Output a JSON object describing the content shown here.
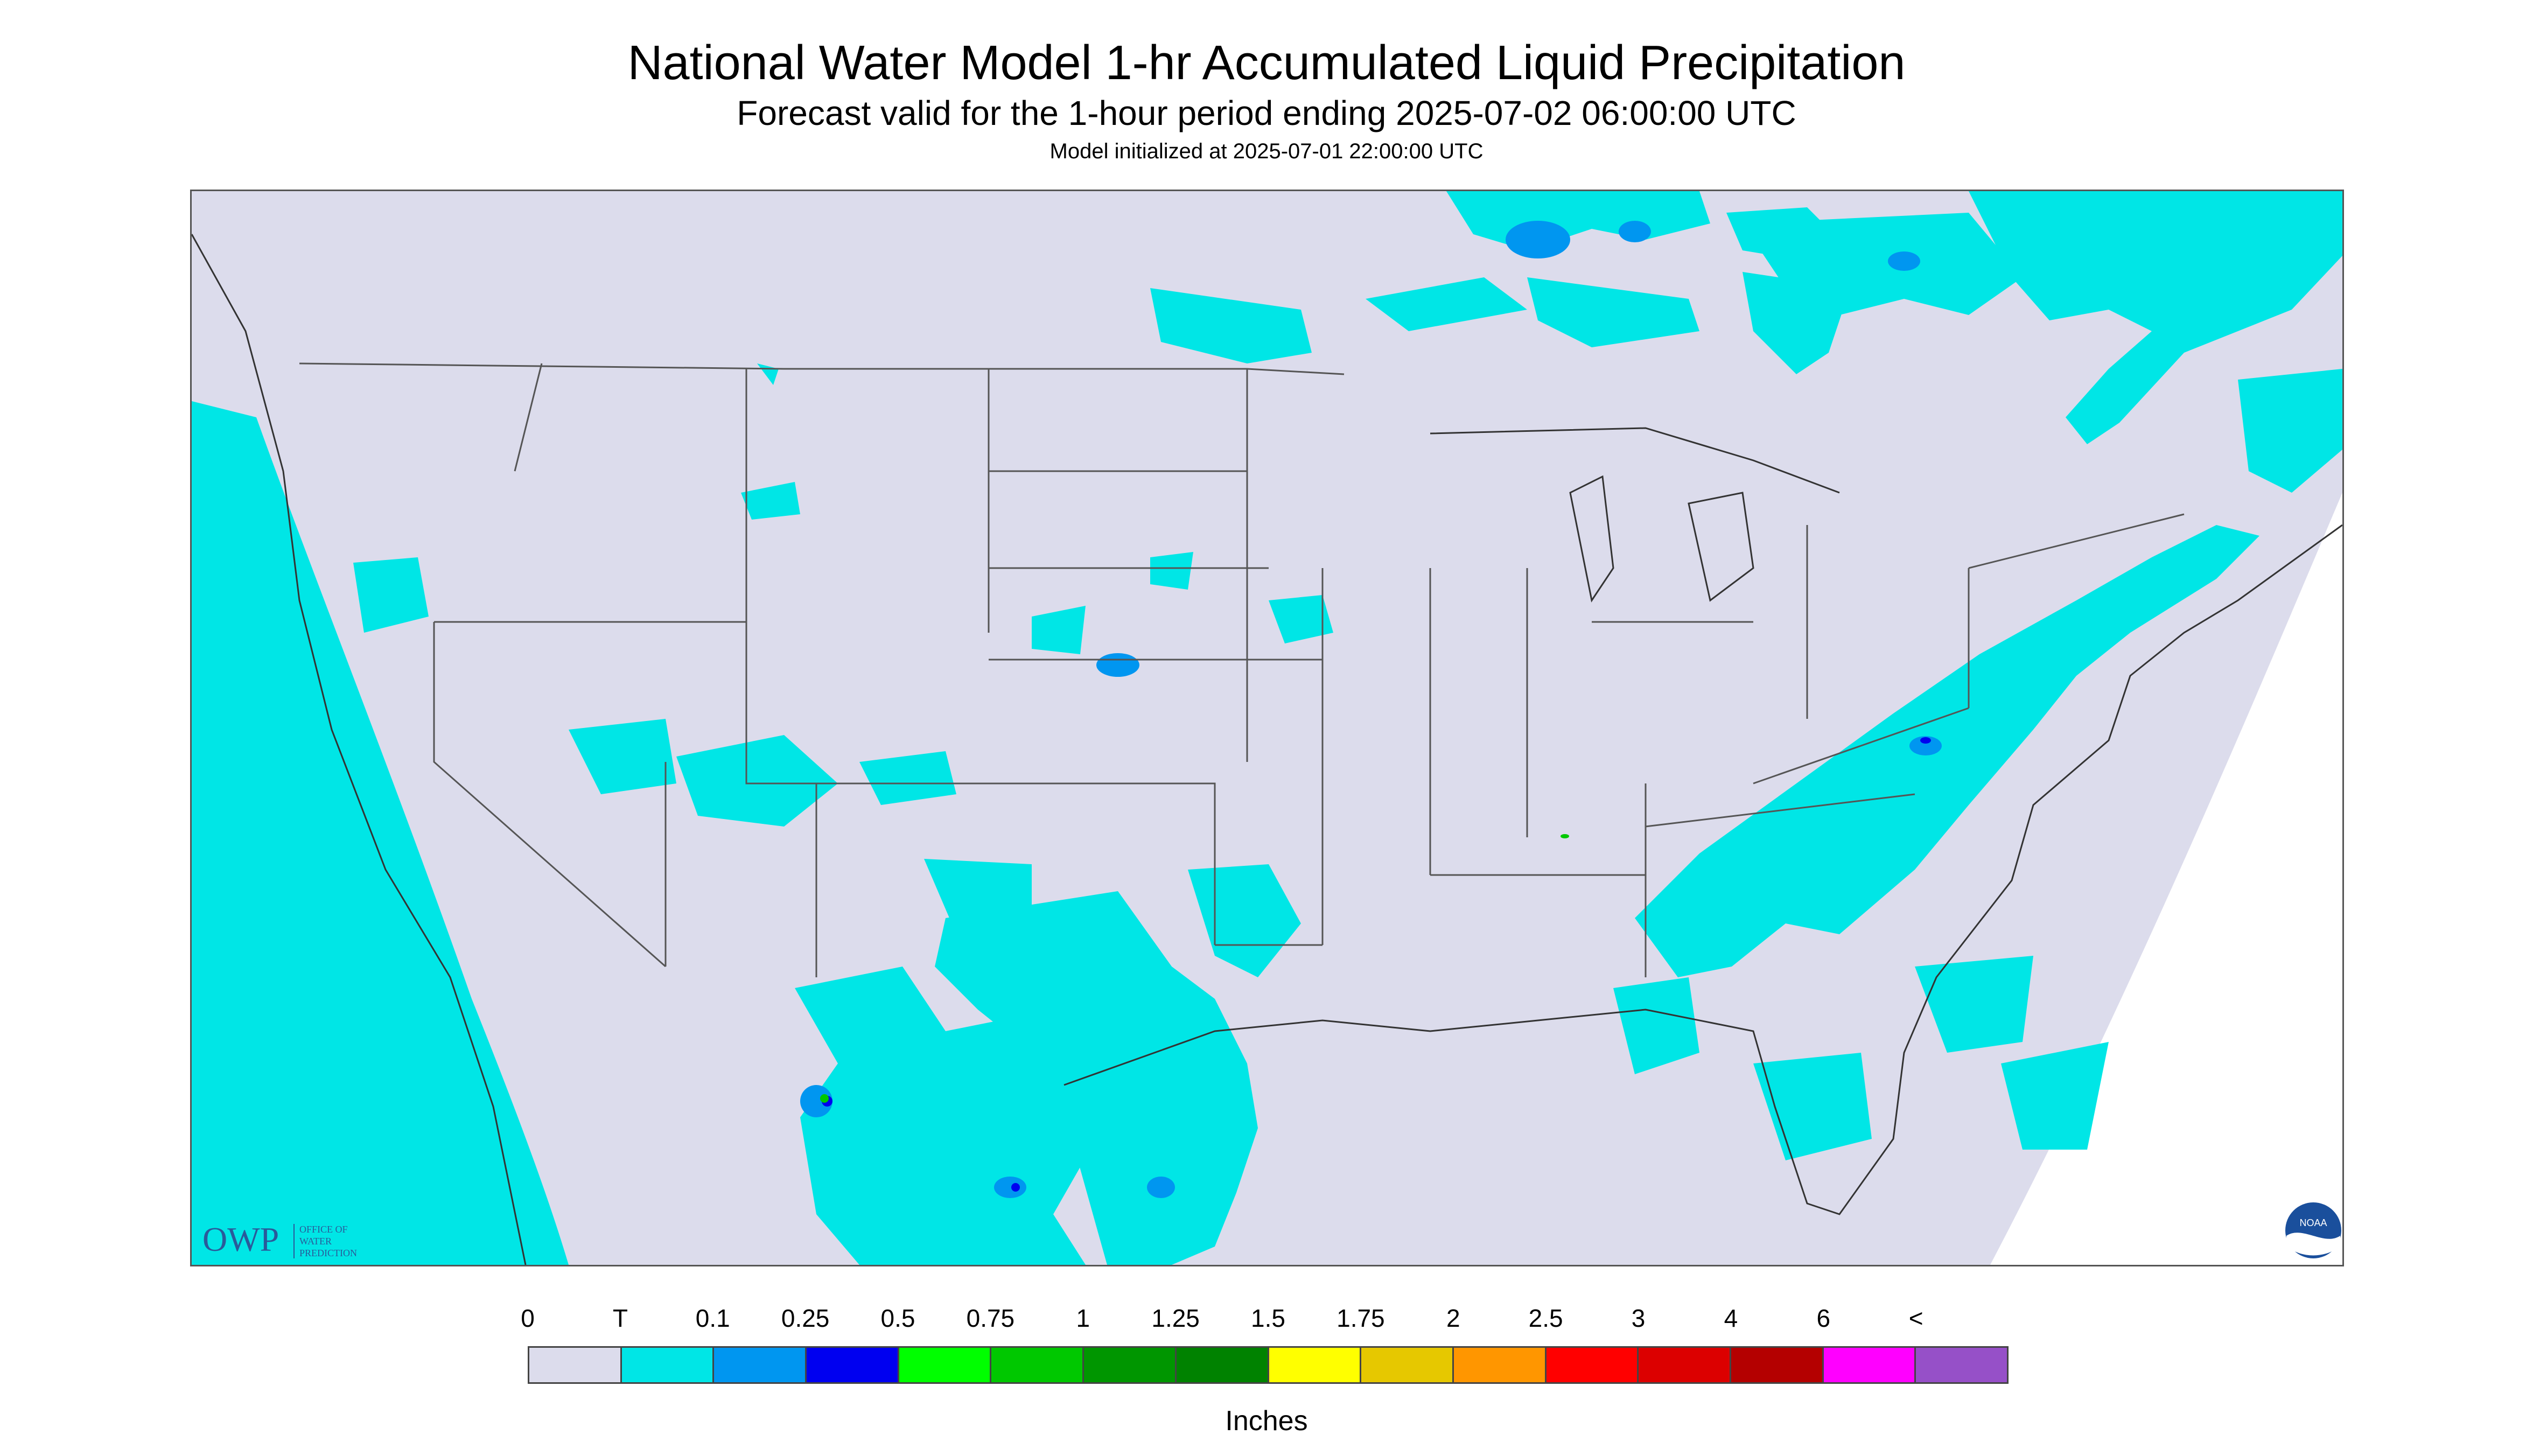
{
  "header": {
    "title": "National Water Model 1-hr Accumulated Liquid Precipitation",
    "subtitle": "Forecast valid for the 1-hour period ending 2025-07-02 06:00:00 UTC",
    "init": "Model initialized at 2025-07-01 22:00:00 UTC"
  },
  "map": {
    "background_color": "#dcdcec",
    "no_data_color": "#ffffff",
    "boundary_color": "#555555",
    "precip_trace_color": "#00e6e6",
    "precip_01_color": "#0096f0"
  },
  "logos": {
    "owp_mark": "OWP",
    "owp_text_1": "OFFICE OF",
    "owp_text_2": "WATER",
    "owp_text_3": "PREDICTION",
    "noaa_text": "NOAA"
  },
  "legend": {
    "labels": [
      "0",
      "T",
      "0.1",
      "0.25",
      "0.5",
      "0.75",
      "1",
      "1.25",
      "1.5",
      "1.75",
      "2",
      "2.5",
      "3",
      "4",
      "6",
      "<"
    ],
    "colors": [
      "#dcdcec",
      "#00e6e6",
      "#0096f0",
      "#0000f0",
      "#00ff00",
      "#00c800",
      "#009600",
      "#008200",
      "#ffff00",
      "#e6c800",
      "#ff9600",
      "#ff0000",
      "#dc0000",
      "#b40000",
      "#ff00ff",
      "#9650c8"
    ],
    "units": "Inches"
  }
}
